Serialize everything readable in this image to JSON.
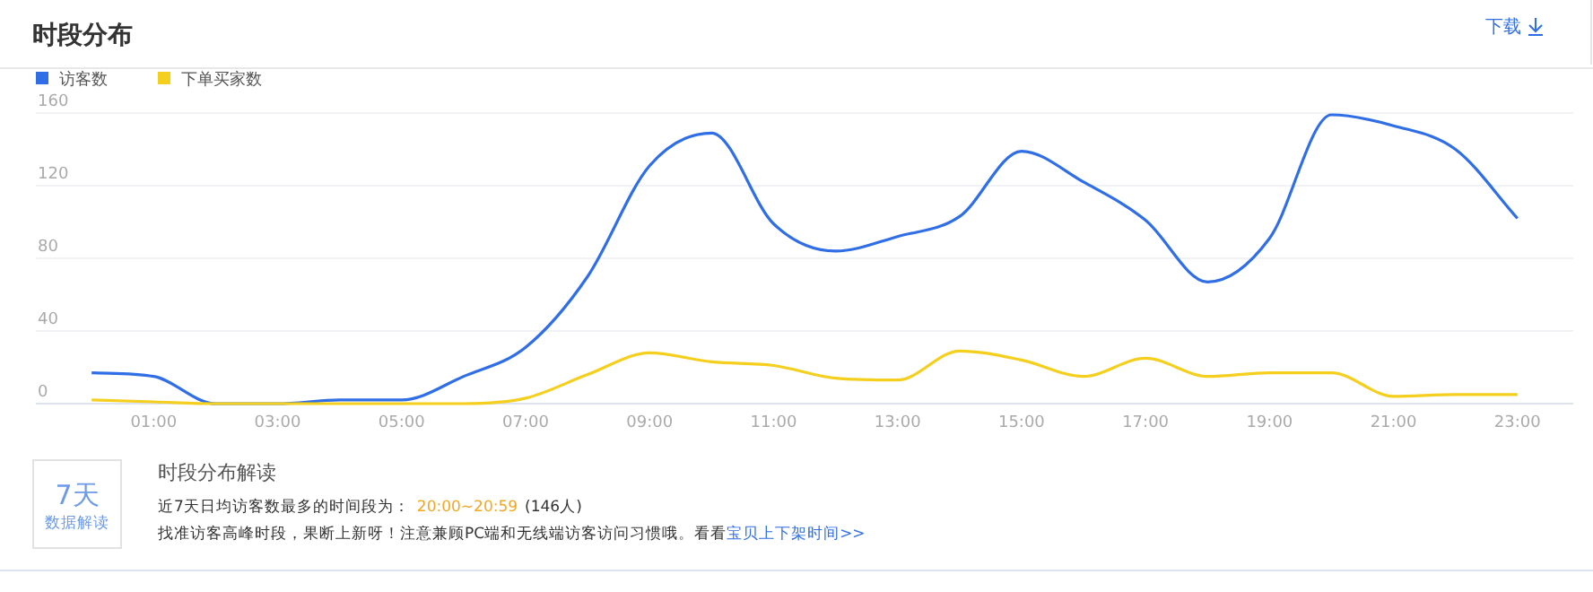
{
  "chart_data": {
    "type": "line",
    "title": "时段分布",
    "x": [
      0,
      1,
      2,
      3,
      4,
      5,
      6,
      7,
      8,
      9,
      10,
      11,
      12,
      13,
      14,
      15,
      16,
      17,
      18,
      19,
      20,
      21,
      22,
      23
    ],
    "series": [
      {
        "name": "访客数",
        "color": "#2f6ee6",
        "values": [
          17,
          15,
          0,
          0,
          2,
          2,
          15,
          31,
          70,
          131,
          149,
          99,
          84,
          92,
          103,
          139,
          122,
          101,
          67,
          91,
          159,
          153,
          140,
          102
        ]
      },
      {
        "name": "下单买家数",
        "color": "#f5cf1e",
        "values": [
          2,
          1,
          0,
          0,
          0,
          0,
          0,
          3,
          16,
          28,
          23,
          21,
          14,
          13,
          29,
          24,
          15,
          25,
          15,
          17,
          17,
          4,
          5,
          5
        ]
      }
    ],
    "xlim": [
      -0.9,
      23.9
    ],
    "ylim": [
      0,
      160
    ],
    "xticks": [
      {
        "value": 1,
        "label": "01:00"
      },
      {
        "value": 3,
        "label": "03:00"
      },
      {
        "value": 5,
        "label": "05:00"
      },
      {
        "value": 7,
        "label": "07:00"
      },
      {
        "value": 9,
        "label": "09:00"
      },
      {
        "value": 11,
        "label": "11:00"
      },
      {
        "value": 13,
        "label": "13:00"
      },
      {
        "value": 15,
        "label": "15:00"
      },
      {
        "value": 17,
        "label": "17:00"
      },
      {
        "value": 19,
        "label": "19:00"
      },
      {
        "value": 21,
        "label": "21:00"
      },
      {
        "value": 23,
        "label": "23:00"
      }
    ],
    "yticks": [
      0,
      40,
      80,
      120,
      160
    ],
    "grid": "y",
    "legend": "top left",
    "marker": "none",
    "line_style": "solid",
    "annotations": [
      "下载",
      "7天",
      "数据解读",
      "时段分布解读",
      "近7天日均访客数最多的时间段为：",
      "20:00~20:59",
      "(146人)",
      "找准访客高峰时段，果断上新呀！注意兼顾PC端和无线端访客访问习惯哦。看看",
      "宝贝上下架时间>>"
    ]
  }
}
